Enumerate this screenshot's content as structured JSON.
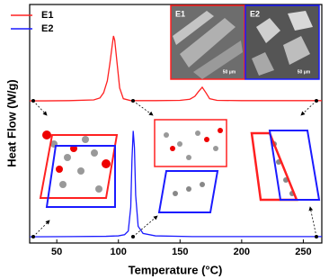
{
  "chart_data": {
    "type": "line",
    "x_label": "Temperature (°C)",
    "y_label": "Heat Flow (W/g)",
    "xlim": [
      28,
      265
    ],
    "xticks": [
      50,
      100,
      150,
      200,
      250
    ],
    "ylim": [
      0,
      100
    ],
    "legend": "upper left",
    "annotations": [
      "50 μm",
      "50 μm"
    ],
    "series": [
      {
        "name": "E1",
        "color": "#ff2020",
        "x": [
          28,
          40,
          60,
          80,
          85,
          88,
          91,
          93,
          95,
          96,
          97,
          99,
          101,
          104,
          110,
          130,
          150,
          158,
          162,
          165,
          168,
          171,
          174,
          180,
          200,
          230,
          250,
          265
        ],
        "values": [
          59.6,
          59.6,
          59.7,
          60,
          60.8,
          63,
          68,
          75,
          83,
          86.8,
          85,
          75,
          65,
          60.5,
          59.7,
          59.7,
          59.8,
          60.3,
          61.5,
          63.5,
          65.3,
          63,
          60.5,
          59.8,
          59.7,
          59.7,
          59.7,
          59.7
        ]
      },
      {
        "name": "E2",
        "color": "#1a1aff",
        "x": [
          28,
          60,
          90,
          100,
          105,
          108,
          110,
          111,
          112,
          113,
          114,
          116,
          120,
          130,
          160,
          200,
          250,
          265
        ],
        "values": [
          2.6,
          2.7,
          2.8,
          3,
          3.5,
          5,
          15,
          35,
          47,
          40,
          20,
          7,
          4,
          3,
          2.7,
          2.7,
          2.7,
          2.7
        ]
      }
    ]
  }
}
